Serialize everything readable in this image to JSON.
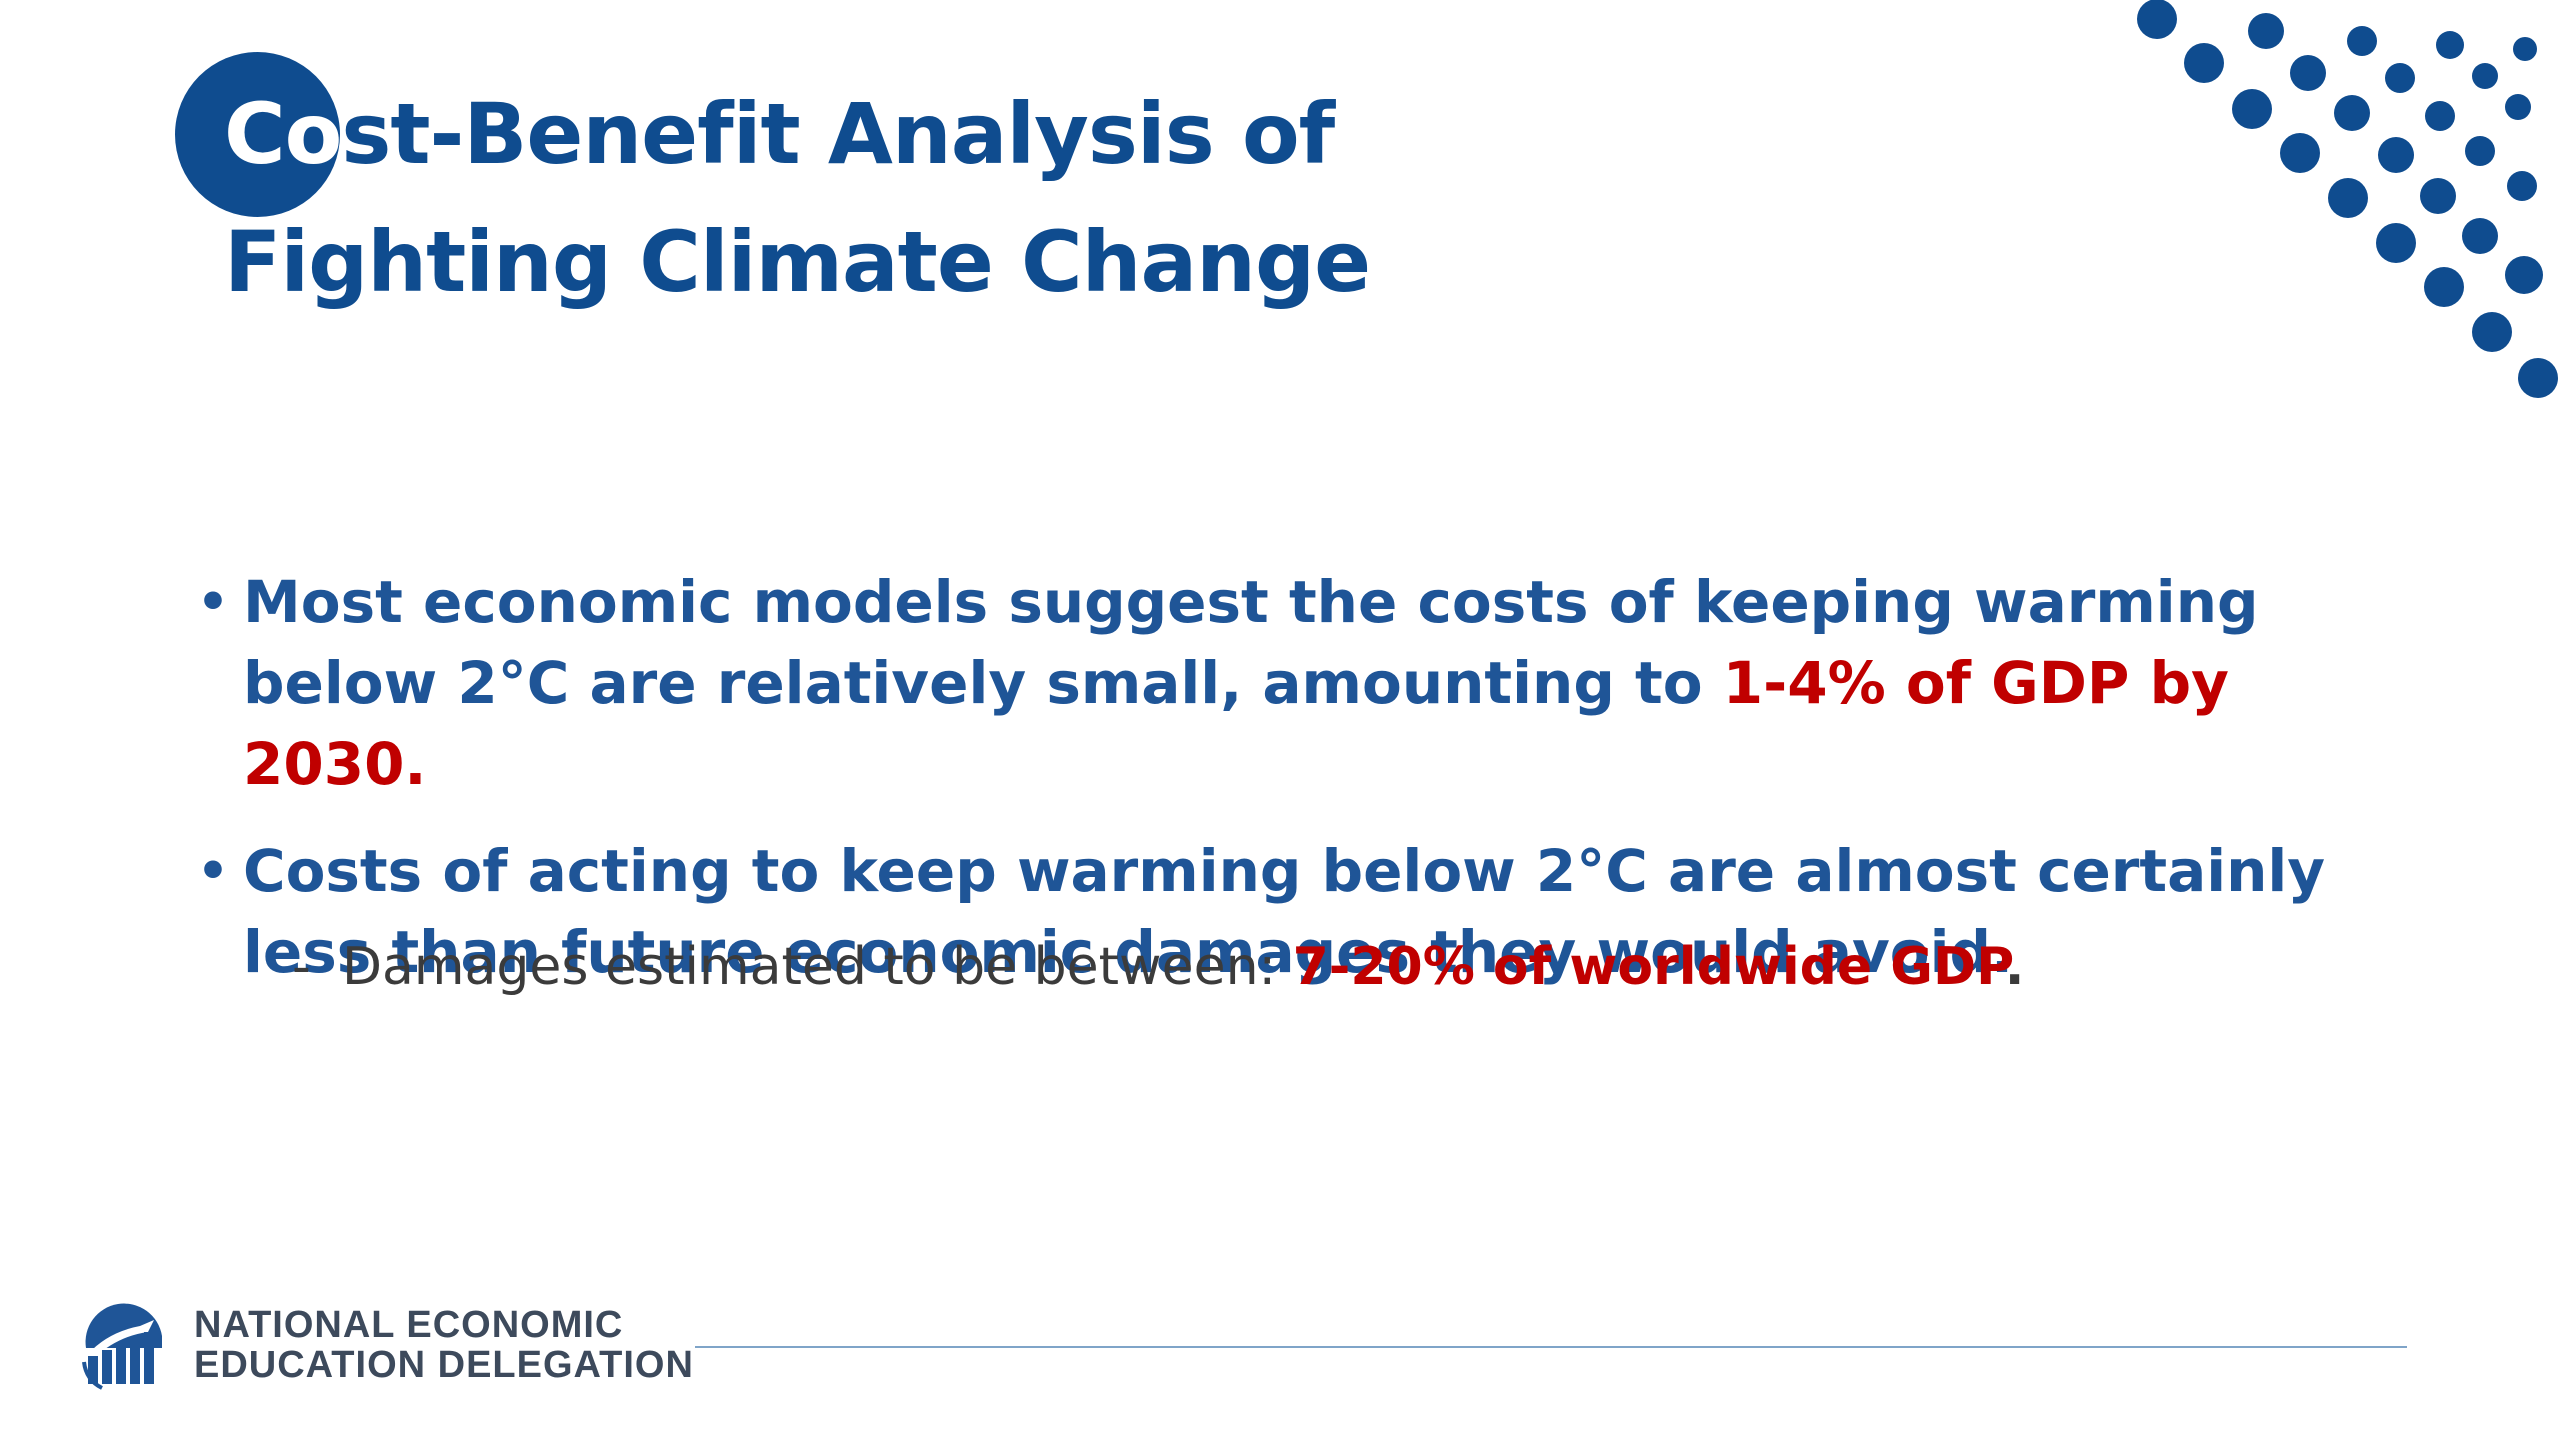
{
  "slide": {
    "title_line1_highlight": "Co",
    "title_line1_rest": "st-Benefit Analysis of",
    "title_line2": "Fighting Climate Change",
    "bullets": [
      {
        "text": "Most economic models suggest the costs of keeping warming below 2°C are relatively small, amounting to ",
        "highlight": "1-4% of GDP by 2030."
      },
      {
        "text": "Costs of acting to keep warming below 2°C are almost certainly less than future economic damages they would avoid.",
        "highlight": ""
      }
    ],
    "bullet_marker": "•",
    "sub_bullet": {
      "dash": "-",
      "text": "Damages estimated to be between: ",
      "highlight": "7-20% of worldwide GDP",
      "end": "."
    }
  },
  "footer": {
    "logo_line1": "NATIONAL ECONOMIC",
    "logo_line2": "EDUCATION DELEGATION",
    "logo_icon": "bar-chart-globe-icon"
  },
  "colors": {
    "primary_blue": "#0f4c8f",
    "text_blue": "#1f5597",
    "highlight_red": "#c00000",
    "dot_blue": "#0f4c8f"
  }
}
